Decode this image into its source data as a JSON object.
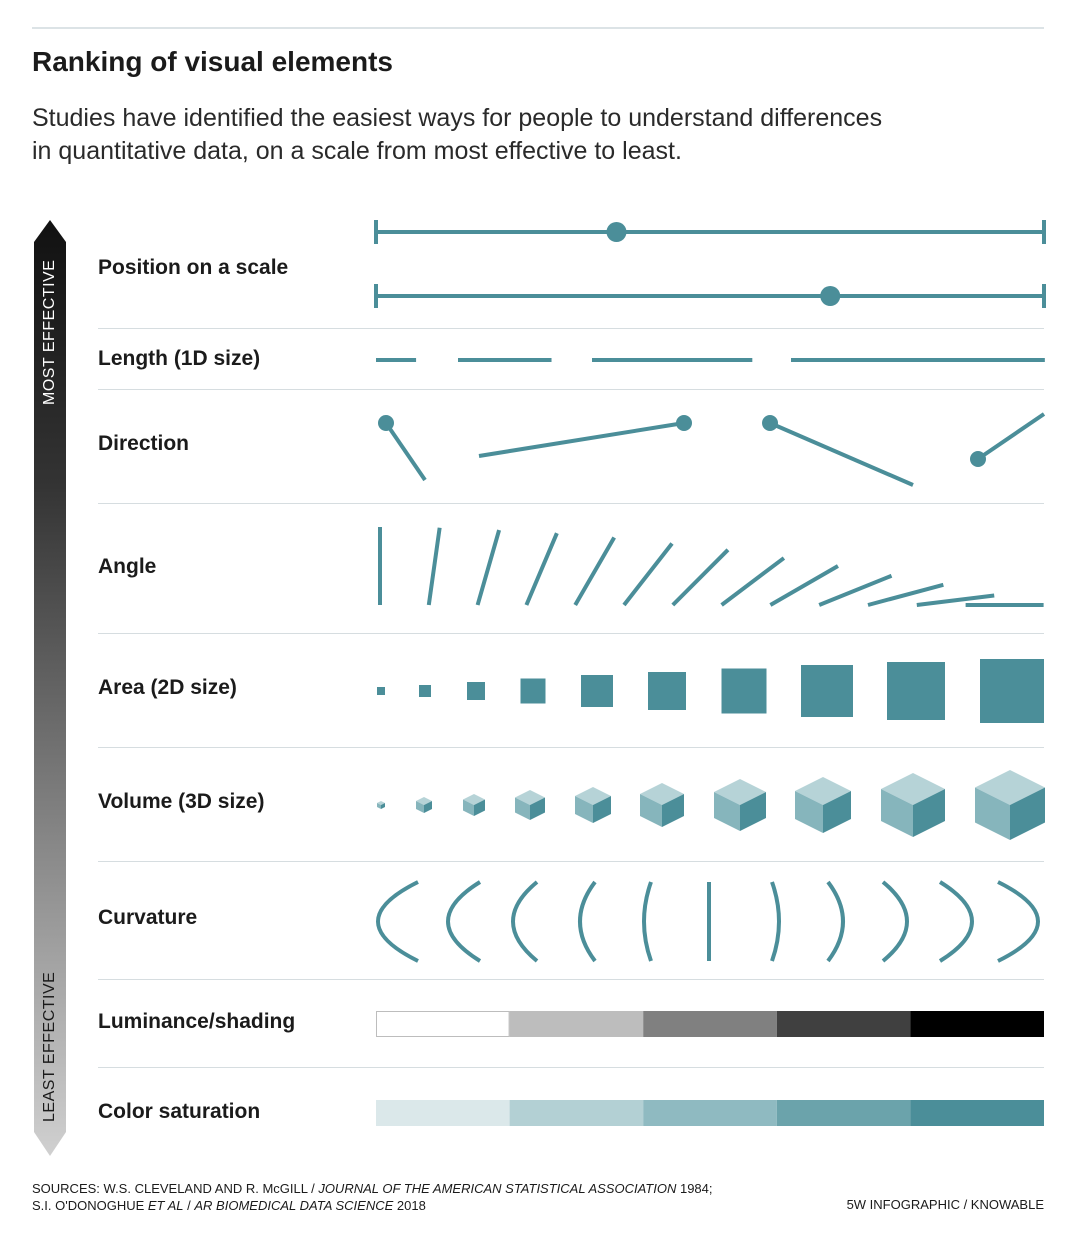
{
  "title": "Ranking of visual elements",
  "subtitle_lines": [
    "Studies have identified the easiest ways for people to understand differences",
    "in quantitative data, on a scale from most effective to least."
  ],
  "scale": {
    "top_label": "MOST EFFECTIVE",
    "bottom_label": "LEAST EFFECTIVE"
  },
  "rows": [
    {
      "label": "Position on a scale",
      "position_values": [
        0.36,
        0.68
      ]
    },
    {
      "label": "Length (1D size)",
      "length_values": [
        0.06,
        0.14,
        0.24,
        0.38
      ]
    },
    {
      "label": "Direction"
    },
    {
      "label": "Angle",
      "angles_deg": [
        90,
        82,
        74,
        67,
        60,
        52,
        45,
        37,
        30,
        22,
        15,
        7,
        0
      ]
    },
    {
      "label": "Area (2D size)"
    },
    {
      "label": "Volume (3D size)"
    },
    {
      "label": "Curvature"
    },
    {
      "label": "Luminance/shading"
    },
    {
      "label": "Color saturation"
    }
  ],
  "colors": {
    "accent": "#4b8e99",
    "luminance": [
      "#ffffff",
      "#bdbdbd",
      "#808080",
      "#404040",
      "#000000"
    ],
    "saturation": [
      "#dbe8ea",
      "#b3d0d4",
      "#8fbac1",
      "#6ba3ab",
      "#4b8e99"
    ],
    "cube_top": "#b6d3d7",
    "cube_left": "#86b5bc",
    "cube_right": "#4b8e99"
  },
  "footer": {
    "sources_line1_a": "SOURCES: W.S. CLEVELAND AND R. McGILL / ",
    "sources_line1_b": "JOURNAL OF THE AMERICAN STATISTICAL ASSOCIATION",
    "sources_line1_c": " 1984;",
    "sources_line2_a": "S.I. O'DONOGHUE ",
    "sources_line2_b": "ET AL",
    "sources_line2_c": " / ",
    "sources_line2_d": "AR BIOMEDICAL DATA SCIENCE",
    "sources_line2_e": " 2018",
    "credit": "5W INFOGRAPHIC / KNOWABLE"
  }
}
